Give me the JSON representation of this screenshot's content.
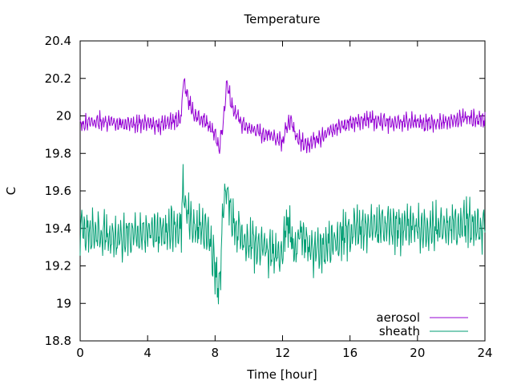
{
  "chart_data": {
    "type": "line",
    "title": "Temperature",
    "xlabel": "Time [hour]",
    "ylabel": "C",
    "xlim": [
      0,
      24
    ],
    "ylim": [
      18.8,
      20.4
    ],
    "x_ticks": [
      0,
      4,
      8,
      12,
      16,
      20,
      24
    ],
    "y_ticks": [
      18.8,
      19.0,
      19.2,
      19.4,
      19.6,
      19.8,
      20.0,
      20.2,
      20.4
    ],
    "x_tick_labels": [
      "0",
      "4",
      "8",
      "12",
      "16",
      "20",
      "24"
    ],
    "y_tick_labels": [
      "18.8",
      "19",
      "19.2",
      "19.4",
      "19.6",
      "19.8",
      "20",
      "20.2",
      "20.4"
    ],
    "grid": false,
    "legend_position": "bottom-right",
    "series": [
      {
        "name": "aerosol",
        "color": "#9400d3",
        "x": [
          0,
          0.5,
          1,
          1.5,
          2,
          2.5,
          3,
          3.5,
          4,
          4.5,
          5,
          5.5,
          6,
          6.1,
          6.25,
          6.5,
          6.75,
          7,
          7.5,
          8,
          8.25,
          8.5,
          8.7,
          9,
          9.5,
          10,
          10.5,
          11,
          11.5,
          12,
          12.25,
          12.5,
          12.75,
          13,
          13.5,
          14,
          14.5,
          15,
          15.5,
          16,
          16.5,
          17,
          17.5,
          18,
          18.5,
          19,
          19.5,
          20,
          20.5,
          21,
          21.5,
          22,
          22.5,
          23,
          23.5,
          24
        ],
        "values": [
          19.95,
          19.96,
          19.97,
          19.97,
          19.96,
          19.96,
          19.95,
          19.96,
          19.96,
          19.95,
          19.96,
          19.97,
          19.99,
          20.2,
          20.15,
          20.06,
          20.01,
          19.99,
          19.97,
          19.9,
          19.82,
          19.98,
          20.18,
          20.05,
          19.97,
          19.93,
          19.92,
          19.9,
          19.89,
          19.86,
          19.95,
          19.98,
          19.9,
          19.87,
          19.84,
          19.87,
          19.9,
          19.93,
          19.95,
          19.96,
          19.97,
          19.98,
          19.97,
          19.97,
          19.96,
          19.97,
          19.97,
          19.97,
          19.96,
          19.96,
          19.97,
          19.97,
          19.98,
          19.99,
          19.98,
          19.98
        ]
      },
      {
        "name": "sheath",
        "color": "#009e73",
        "x": [
          0,
          0.5,
          1,
          1.5,
          2,
          2.5,
          3,
          3.5,
          4,
          4.5,
          5,
          5.5,
          6,
          6.1,
          6.25,
          6.5,
          6.75,
          7,
          7.5,
          8,
          8.25,
          8.5,
          8.7,
          9,
          9.5,
          10,
          10.5,
          11,
          11.5,
          12,
          12.25,
          12.5,
          12.75,
          13,
          13.5,
          14,
          14.5,
          15,
          15.5,
          16,
          16.5,
          17,
          17.5,
          18,
          18.5,
          19,
          19.5,
          20,
          20.5,
          21,
          21.5,
          22,
          22.5,
          23,
          23.5,
          24
        ],
        "values": [
          19.38,
          19.38,
          19.37,
          19.36,
          19.35,
          19.35,
          19.36,
          19.36,
          19.37,
          19.37,
          19.38,
          19.4,
          19.42,
          19.6,
          19.52,
          19.45,
          19.42,
          19.4,
          19.38,
          19.2,
          19.08,
          19.55,
          19.62,
          19.42,
          19.36,
          19.32,
          19.3,
          19.28,
          19.27,
          19.25,
          19.45,
          19.35,
          19.26,
          19.4,
          19.3,
          19.28,
          19.3,
          19.33,
          19.36,
          19.38,
          19.39,
          19.4,
          19.41,
          19.41,
          19.41,
          19.4,
          19.41,
          19.4,
          19.4,
          19.41,
          19.41,
          19.41,
          19.42,
          19.42,
          19.41,
          19.42
        ]
      }
    ]
  }
}
